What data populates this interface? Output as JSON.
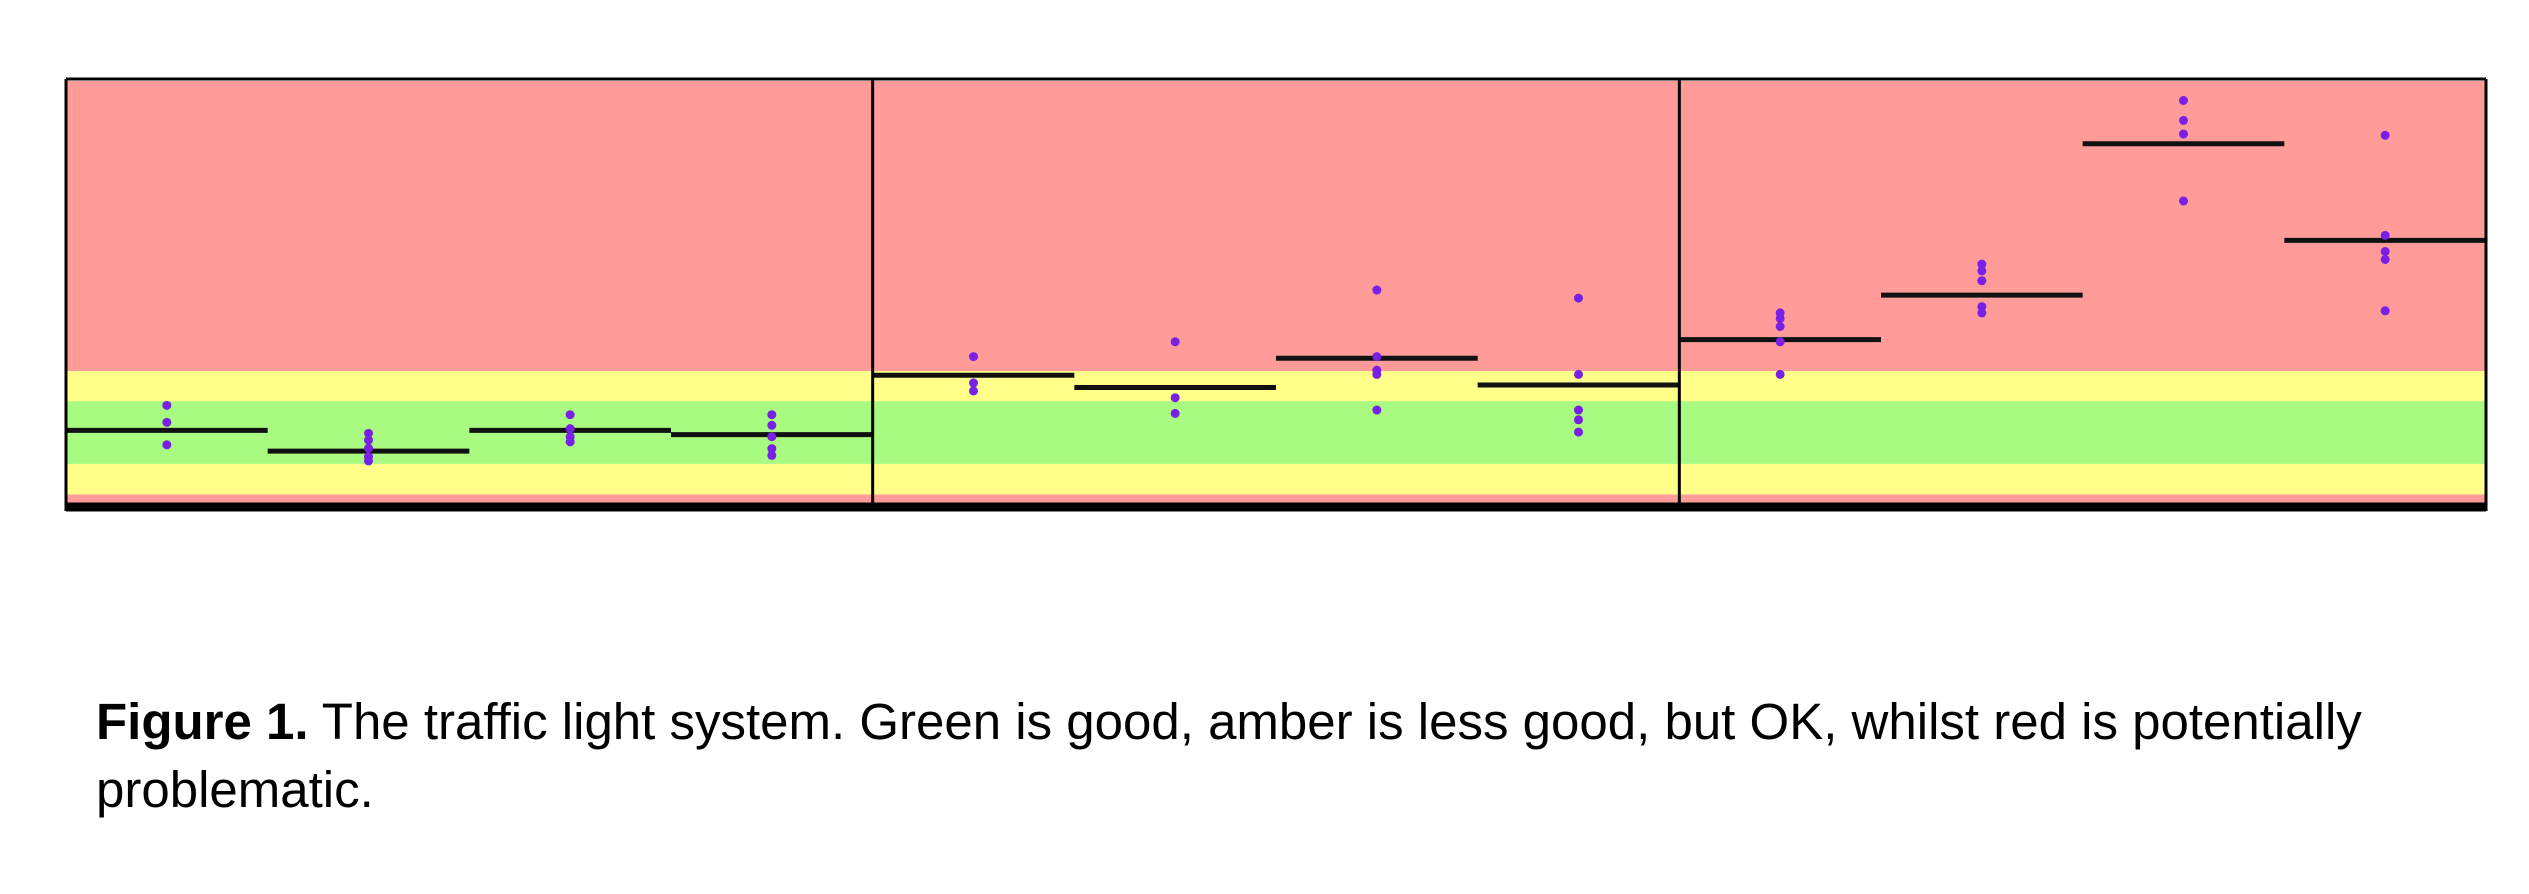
{
  "colors": {
    "red_zone": "#ff9c9a",
    "amber_zone": "#ffff8a",
    "green_zone": "#a8fa80",
    "points": "#7a1fe6",
    "means": "#111111",
    "frame": "#000000"
  },
  "caption": {
    "label": "Figure 1.",
    "text": " The traffic light system. Green is good, amber is less good, but OK, whilst red is potentially problematic."
  },
  "chart_data": {
    "type": "scatter",
    "title": "",
    "xlabel": "",
    "ylabel": "",
    "grid": false,
    "ylim": [
      0,
      100
    ],
    "zones": [
      {
        "name": "red",
        "from": 0,
        "to": 2.5,
        "color": "#ff9c9a"
      },
      {
        "name": "amber",
        "from": 2.5,
        "to": 9.7,
        "color": "#ffff8a"
      },
      {
        "name": "green",
        "from": 9.7,
        "to": 24.5,
        "color": "#a8fa80"
      },
      {
        "name": "amber",
        "from": 24.5,
        "to": 31.6,
        "color": "#ffff8a"
      },
      {
        "name": "red",
        "from": 31.6,
        "to": 100,
        "color": "#ff9c9a"
      }
    ],
    "panels": [
      {
        "groups": [
          {
            "mean": 17.6,
            "points": [
              23.5,
              19.5,
              14.2
            ]
          },
          {
            "mean": 12.7,
            "points": [
              16.9,
              15.3,
              13.4,
              11.4,
              10.4
            ]
          },
          {
            "mean": 17.6,
            "points": [
              21.3,
              18.0,
              16.1,
              14.9
            ]
          },
          {
            "mean": 16.6,
            "points": [
              21.3,
              18.8,
              16.1,
              13.3,
              11.7
            ]
          }
        ]
      },
      {
        "groups": [
          {
            "mean": 30.6,
            "points": [
              35.0,
              28.8,
              26.9
            ]
          },
          {
            "mean": 27.7,
            "points": [
              38.5,
              25.3,
              21.6
            ]
          },
          {
            "mean": 34.6,
            "points": [
              50.7,
              35.0,
              31.8,
              30.8,
              22.4
            ]
          },
          {
            "mean": 28.3,
            "points": [
              48.8,
              30.8,
              22.4,
              20.1,
              17.2
            ]
          }
        ]
      },
      {
        "groups": [
          {
            "mean": 39.0,
            "points": [
              45.3,
              44.0,
              42.1,
              38.5,
              30.8
            ]
          },
          {
            "mean": 49.5,
            "points": [
              56.8,
              55.2,
              52.9,
              46.8,
              45.3
            ]
          },
          {
            "mean": 85.2,
            "points": [
              95.4,
              90.7,
              87.5,
              71.7
            ]
          },
          {
            "mean": 62.4,
            "points": [
              87.2,
              63.6,
              59.8,
              57.9,
              45.8
            ]
          }
        ]
      }
    ]
  }
}
